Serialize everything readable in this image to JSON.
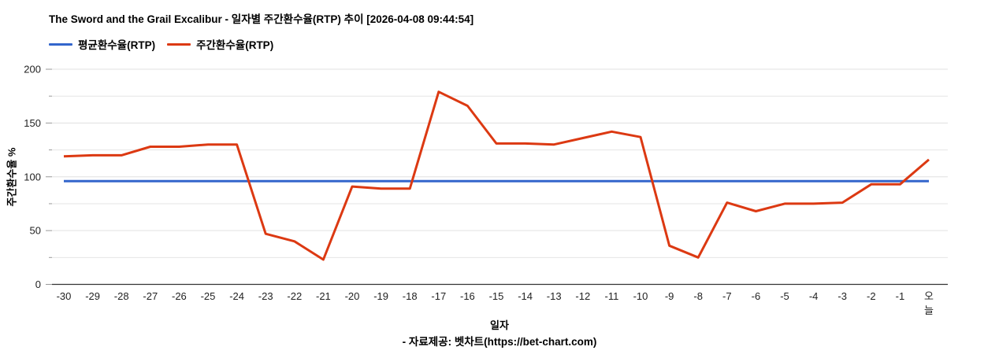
{
  "header": {
    "title": "The Sword and the Grail Excalibur - 일자별 주간환수율(RTP) 추이 [2026-04-08 09:44:54]"
  },
  "legend": {
    "items": [
      {
        "label": "평균환수율(RTP)",
        "color": "#3366cc"
      },
      {
        "label": "주간환수율(RTP)",
        "color": "#dc3912"
      }
    ]
  },
  "axes": {
    "x_title": "일자",
    "y_title": "주간환수율 %"
  },
  "footer": {
    "source_text": "- 자료제공: 벳차트(https://bet-chart.com)"
  },
  "colors": {
    "average_line": "#3366cc",
    "weekly_line": "#dc3912",
    "gridline_major": "#e0e0e0",
    "gridline_minor": "#e6e6e6",
    "axis_line": "#333333",
    "tick_mark": "#999999",
    "tick_text": "#222222"
  },
  "chart_data": {
    "type": "line",
    "title": "The Sword and the Grail Excalibur - 일자별 주간환수율(RTP) 추이 [2026-04-08 09:44:54]",
    "xlabel": "일자",
    "ylabel": "주간환수율 %",
    "categories": [
      "-30",
      "-29",
      "-28",
      "-27",
      "-26",
      "-25",
      "-24",
      "-23",
      "-22",
      "-21",
      "-20",
      "-19",
      "-18",
      "-17",
      "-16",
      "-15",
      "-14",
      "-13",
      "-12",
      "-11",
      "-10",
      "-9",
      "-8",
      "-7",
      "-6",
      "-5",
      "-4",
      "-3",
      "-2",
      "-1",
      "오늘"
    ],
    "series": [
      {
        "name": "평균환수율(RTP)",
        "color": "#3366cc",
        "values": [
          96,
          96,
          96,
          96,
          96,
          96,
          96,
          96,
          96,
          96,
          96,
          96,
          96,
          96,
          96,
          96,
          96,
          96,
          96,
          96,
          96,
          96,
          96,
          96,
          96,
          96,
          96,
          96,
          96,
          96,
          96
        ]
      },
      {
        "name": "주간환수율(RTP)",
        "color": "#dc3912",
        "values": [
          119,
          120,
          120,
          128,
          128,
          130,
          130,
          47,
          40,
          23,
          91,
          89,
          89,
          179,
          166,
          131,
          131,
          130,
          136,
          142,
          137,
          36,
          25,
          76,
          68,
          75,
          75,
          76,
          93,
          93,
          116
        ]
      }
    ],
    "ylim": [
      0,
      200
    ],
    "yticks": [
      0,
      50,
      100,
      150,
      200
    ],
    "minor_yticks": [
      25,
      75,
      125,
      175
    ],
    "grid": true,
    "legend_position": "top-left"
  }
}
